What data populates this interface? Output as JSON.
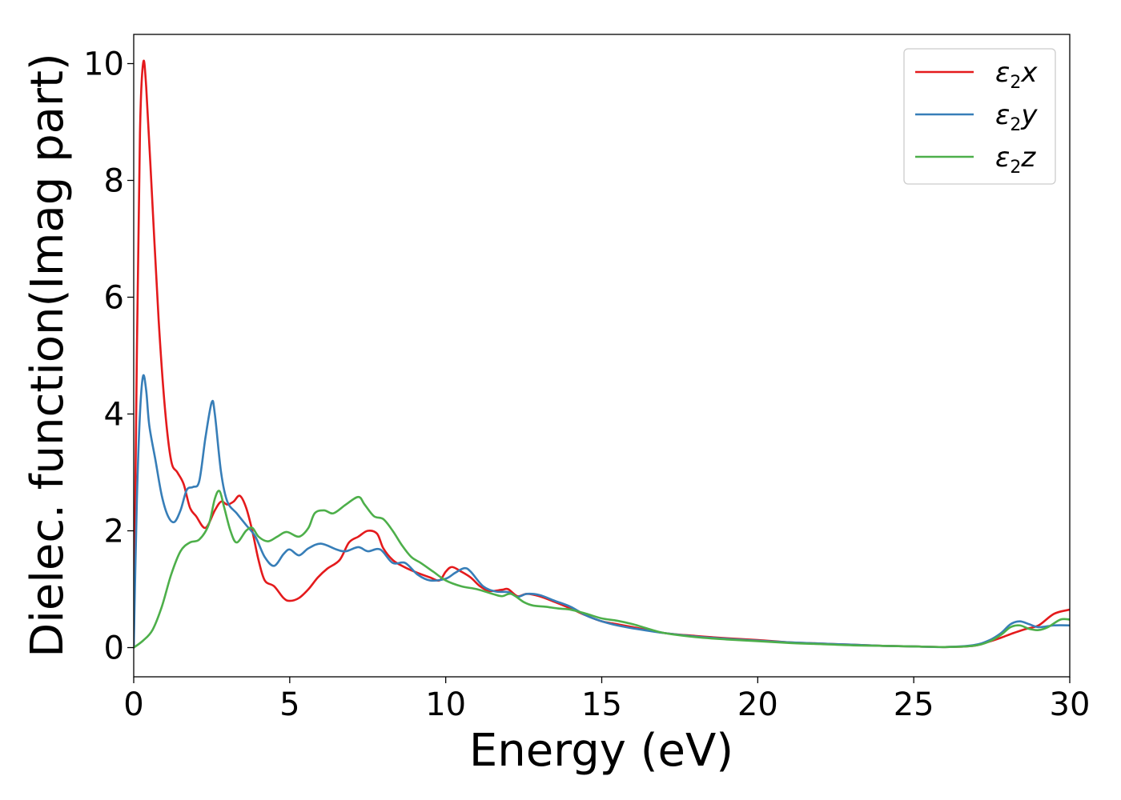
{
  "chart_data": {
    "type": "line",
    "xlabel": "Energy (eV)",
    "ylabel": "Dielec. function(Imag part)",
    "xlim": [
      0,
      30
    ],
    "ylim": [
      -0.5,
      10.5
    ],
    "xticks": [
      0,
      5,
      10,
      15,
      20,
      25,
      30
    ],
    "yticks": [
      0,
      2,
      4,
      6,
      8,
      10
    ],
    "grid": false,
    "legend_position": "top-right",
    "series": [
      {
        "name": "ε2x",
        "label_base": "ε",
        "label_sub": "2",
        "label_var": "x",
        "color": "#e41a1c",
        "points": [
          [
            0,
            0
          ],
          [
            0.1,
            5.0
          ],
          [
            0.2,
            8.8
          ],
          [
            0.3,
            10.0
          ],
          [
            0.4,
            9.6
          ],
          [
            0.6,
            7.6
          ],
          [
            0.8,
            5.6
          ],
          [
            1.0,
            4.1
          ],
          [
            1.2,
            3.2
          ],
          [
            1.4,
            3.0
          ],
          [
            1.6,
            2.8
          ],
          [
            1.8,
            2.4
          ],
          [
            2.0,
            2.25
          ],
          [
            2.3,
            2.05
          ],
          [
            2.6,
            2.35
          ],
          [
            2.8,
            2.5
          ],
          [
            3.0,
            2.45
          ],
          [
            3.2,
            2.5
          ],
          [
            3.4,
            2.6
          ],
          [
            3.6,
            2.4
          ],
          [
            3.8,
            2.0
          ],
          [
            4.0,
            1.5
          ],
          [
            4.2,
            1.15
          ],
          [
            4.5,
            1.05
          ],
          [
            4.8,
            0.85
          ],
          [
            5.0,
            0.8
          ],
          [
            5.3,
            0.85
          ],
          [
            5.6,
            1.0
          ],
          [
            5.9,
            1.2
          ],
          [
            6.2,
            1.35
          ],
          [
            6.6,
            1.5
          ],
          [
            6.9,
            1.8
          ],
          [
            7.2,
            1.9
          ],
          [
            7.5,
            2.0
          ],
          [
            7.8,
            1.95
          ],
          [
            8.0,
            1.7
          ],
          [
            8.3,
            1.5
          ],
          [
            8.6,
            1.4
          ],
          [
            9.0,
            1.3
          ],
          [
            9.5,
            1.2
          ],
          [
            9.8,
            1.15
          ],
          [
            10.0,
            1.3
          ],
          [
            10.2,
            1.38
          ],
          [
            10.5,
            1.3
          ],
          [
            10.8,
            1.2
          ],
          [
            11.1,
            1.05
          ],
          [
            11.4,
            0.97
          ],
          [
            11.8,
            0.99
          ],
          [
            12.0,
            1.0
          ],
          [
            12.3,
            0.88
          ],
          [
            12.6,
            0.92
          ],
          [
            13.0,
            0.88
          ],
          [
            13.5,
            0.78
          ],
          [
            14.0,
            0.67
          ],
          [
            14.5,
            0.55
          ],
          [
            15.0,
            0.45
          ],
          [
            15.5,
            0.4
          ],
          [
            16.0,
            0.35
          ],
          [
            17.0,
            0.25
          ],
          [
            18.0,
            0.2
          ],
          [
            19.0,
            0.16
          ],
          [
            20.0,
            0.13
          ],
          [
            21.0,
            0.09
          ],
          [
            22.0,
            0.07
          ],
          [
            23.0,
            0.05
          ],
          [
            24.0,
            0.03
          ],
          [
            25.0,
            0.02
          ],
          [
            26.0,
            0.01
          ],
          [
            26.9,
            0.03
          ],
          [
            27.4,
            0.1
          ],
          [
            27.8,
            0.17
          ],
          [
            28.2,
            0.25
          ],
          [
            28.6,
            0.32
          ],
          [
            29.0,
            0.38
          ],
          [
            29.5,
            0.58
          ],
          [
            30.0,
            0.65
          ]
        ]
      },
      {
        "name": "ε2y",
        "label_base": "ε",
        "label_sub": "2",
        "label_var": "y",
        "color": "#377eb8",
        "points": [
          [
            0,
            0
          ],
          [
            0.1,
            2.5
          ],
          [
            0.2,
            4.0
          ],
          [
            0.3,
            4.65
          ],
          [
            0.4,
            4.4
          ],
          [
            0.5,
            3.8
          ],
          [
            0.7,
            3.2
          ],
          [
            0.9,
            2.6
          ],
          [
            1.1,
            2.25
          ],
          [
            1.3,
            2.15
          ],
          [
            1.5,
            2.35
          ],
          [
            1.7,
            2.7
          ],
          [
            1.9,
            2.75
          ],
          [
            2.1,
            2.85
          ],
          [
            2.3,
            3.6
          ],
          [
            2.5,
            4.2
          ],
          [
            2.6,
            4.0
          ],
          [
            2.8,
            3.0
          ],
          [
            3.0,
            2.5
          ],
          [
            3.3,
            2.3
          ],
          [
            3.6,
            2.1
          ],
          [
            3.9,
            1.9
          ],
          [
            4.2,
            1.55
          ],
          [
            4.5,
            1.4
          ],
          [
            4.8,
            1.6
          ],
          [
            5.0,
            1.68
          ],
          [
            5.3,
            1.58
          ],
          [
            5.6,
            1.7
          ],
          [
            6.0,
            1.78
          ],
          [
            6.5,
            1.68
          ],
          [
            6.8,
            1.65
          ],
          [
            7.2,
            1.72
          ],
          [
            7.5,
            1.65
          ],
          [
            7.9,
            1.68
          ],
          [
            8.3,
            1.45
          ],
          [
            8.7,
            1.45
          ],
          [
            9.1,
            1.25
          ],
          [
            9.5,
            1.15
          ],
          [
            10.0,
            1.18
          ],
          [
            10.3,
            1.28
          ],
          [
            10.6,
            1.36
          ],
          [
            10.8,
            1.3
          ],
          [
            11.2,
            1.05
          ],
          [
            11.6,
            0.96
          ],
          [
            12.0,
            0.95
          ],
          [
            12.3,
            0.87
          ],
          [
            12.6,
            0.92
          ],
          [
            13.0,
            0.9
          ],
          [
            13.5,
            0.8
          ],
          [
            14.0,
            0.7
          ],
          [
            14.5,
            0.55
          ],
          [
            15.0,
            0.45
          ],
          [
            15.5,
            0.38
          ],
          [
            16.0,
            0.33
          ],
          [
            17.0,
            0.25
          ],
          [
            18.0,
            0.19
          ],
          [
            19.0,
            0.15
          ],
          [
            20.0,
            0.12
          ],
          [
            21.0,
            0.09
          ],
          [
            22.0,
            0.07
          ],
          [
            23.0,
            0.05
          ],
          [
            24.0,
            0.03
          ],
          [
            25.0,
            0.02
          ],
          [
            26.0,
            0.01
          ],
          [
            26.9,
            0.04
          ],
          [
            27.4,
            0.12
          ],
          [
            27.8,
            0.25
          ],
          [
            28.1,
            0.4
          ],
          [
            28.4,
            0.45
          ],
          [
            28.7,
            0.4
          ],
          [
            29.0,
            0.35
          ],
          [
            29.5,
            0.38
          ],
          [
            30.0,
            0.38
          ]
        ]
      },
      {
        "name": "ε2z",
        "label_base": "ε",
        "label_sub": "2",
        "label_var": "z",
        "color": "#4daf4a",
        "points": [
          [
            0,
            0
          ],
          [
            0.3,
            0.12
          ],
          [
            0.6,
            0.3
          ],
          [
            0.9,
            0.7
          ],
          [
            1.2,
            1.25
          ],
          [
            1.5,
            1.65
          ],
          [
            1.8,
            1.8
          ],
          [
            2.1,
            1.85
          ],
          [
            2.4,
            2.1
          ],
          [
            2.6,
            2.55
          ],
          [
            2.75,
            2.68
          ],
          [
            2.9,
            2.4
          ],
          [
            3.1,
            2.0
          ],
          [
            3.3,
            1.8
          ],
          [
            3.6,
            2.0
          ],
          [
            3.8,
            2.05
          ],
          [
            4.0,
            1.9
          ],
          [
            4.3,
            1.82
          ],
          [
            4.6,
            1.9
          ],
          [
            4.9,
            1.98
          ],
          [
            5.3,
            1.9
          ],
          [
            5.6,
            2.05
          ],
          [
            5.8,
            2.3
          ],
          [
            6.1,
            2.35
          ],
          [
            6.4,
            2.3
          ],
          [
            6.8,
            2.45
          ],
          [
            7.2,
            2.58
          ],
          [
            7.4,
            2.45
          ],
          [
            7.7,
            2.25
          ],
          [
            8.0,
            2.2
          ],
          [
            8.3,
            2.0
          ],
          [
            8.6,
            1.75
          ],
          [
            8.9,
            1.55
          ],
          [
            9.2,
            1.45
          ],
          [
            9.6,
            1.3
          ],
          [
            10.0,
            1.15
          ],
          [
            10.5,
            1.05
          ],
          [
            11.0,
            1.0
          ],
          [
            11.5,
            0.92
          ],
          [
            11.8,
            0.88
          ],
          [
            12.1,
            0.92
          ],
          [
            12.5,
            0.78
          ],
          [
            12.8,
            0.72
          ],
          [
            13.2,
            0.7
          ],
          [
            13.6,
            0.67
          ],
          [
            14.0,
            0.65
          ],
          [
            14.5,
            0.58
          ],
          [
            15.0,
            0.5
          ],
          [
            15.5,
            0.46
          ],
          [
            16.0,
            0.4
          ],
          [
            16.5,
            0.32
          ],
          [
            17.0,
            0.25
          ],
          [
            18.0,
            0.18
          ],
          [
            19.0,
            0.14
          ],
          [
            20.0,
            0.11
          ],
          [
            21.0,
            0.08
          ],
          [
            22.0,
            0.06
          ],
          [
            23.0,
            0.04
          ],
          [
            24.0,
            0.03
          ],
          [
            25.0,
            0.02
          ],
          [
            26.0,
            0.01
          ],
          [
            26.9,
            0.03
          ],
          [
            27.4,
            0.1
          ],
          [
            27.8,
            0.22
          ],
          [
            28.1,
            0.35
          ],
          [
            28.4,
            0.38
          ],
          [
            28.7,
            0.32
          ],
          [
            29.0,
            0.3
          ],
          [
            29.3,
            0.35
          ],
          [
            29.7,
            0.48
          ],
          [
            30.0,
            0.48
          ]
        ]
      }
    ]
  }
}
